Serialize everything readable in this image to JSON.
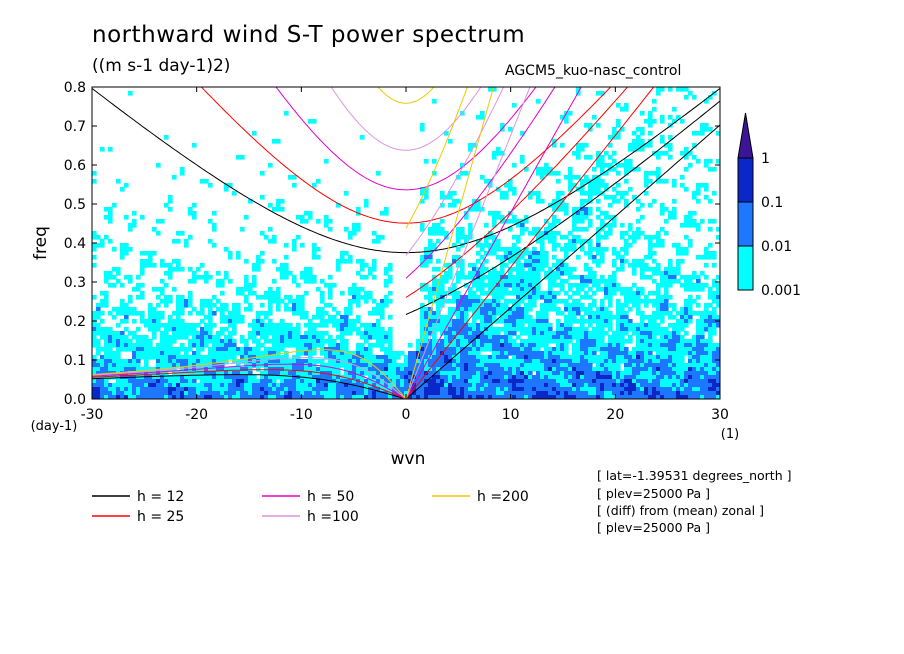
{
  "figure": {
    "title": "northward wind S-T power spectrum",
    "units": "((m s-1 day-1)2)",
    "run_label": "AGCM5_kuo-nasc_control",
    "info_lines": [
      "[ lat=-1.39531 degrees_north ]",
      "[ plev=25000 Pa ]",
      "[ (diff) from (mean) zonal ]",
      "[ plev=25000 Pa ]"
    ]
  },
  "chart_data": {
    "type": "heatmap",
    "title": "northward wind S-T power spectrum",
    "xlabel": "wvn",
    "xunit": "(1)",
    "ylabel": "freq",
    "yunit": "(day-1)",
    "xlim": [
      -30,
      30
    ],
    "ylim": [
      0,
      0.8
    ],
    "x_ticks": [
      -30,
      -20,
      -10,
      0,
      10,
      20,
      30
    ],
    "x_tick_labels": [
      "-30",
      "-20",
      "-10",
      "0",
      "10",
      "20",
      "30"
    ],
    "y_ticks": [
      0,
      0.1,
      0.2,
      0.3,
      0.4,
      0.5,
      0.6,
      0.7,
      0.8
    ],
    "y_tick_labels": [
      "0.0",
      "0.1",
      "0.2",
      "0.3",
      "0.4",
      "0.5",
      "0.6",
      "0.7",
      "0.8"
    ],
    "colorbar": {
      "levels": [
        0.001,
        0.01,
        0.1,
        1
      ],
      "labels": [
        "0.001",
        "0.01",
        "0.1",
        "1"
      ],
      "colors": [
        "#00ffff",
        "#1e78ff",
        "#0a28c8",
        "#3c1496"
      ]
    },
    "dispersion_curves": [
      {
        "name": "h = 12",
        "h": 12,
        "color": "#000000"
      },
      {
        "name": "h = 25",
        "h": 25,
        "color": "#ff0000"
      },
      {
        "name": "h = 50",
        "h": 50,
        "color": "#e600c8"
      },
      {
        "name": "h =100",
        "h": 100,
        "color": "#dc96dc"
      },
      {
        "name": "h =200",
        "h": 200,
        "color": "#f0c800"
      }
    ],
    "legend_order": [
      0,
      2,
      4,
      1,
      3
    ],
    "grid": false
  }
}
